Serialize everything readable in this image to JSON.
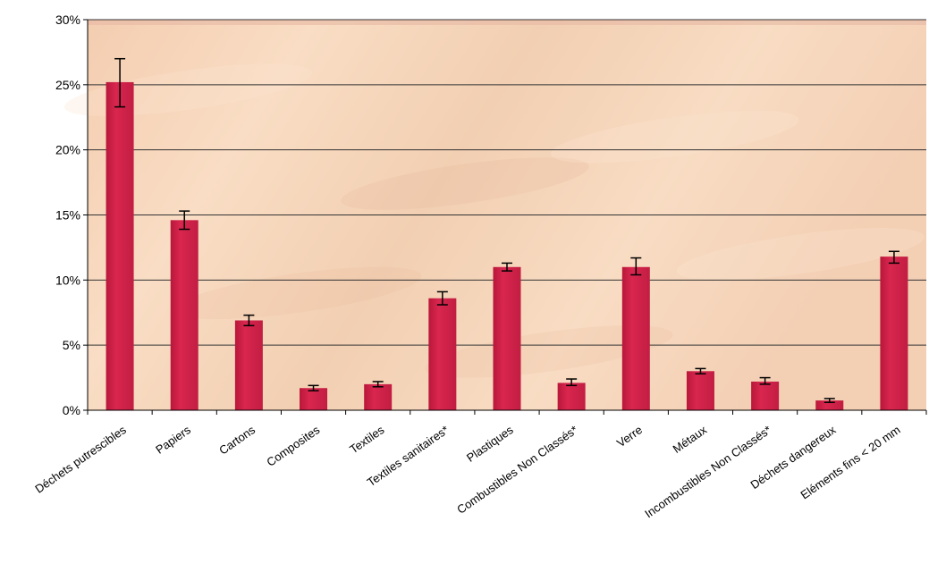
{
  "chart_data": {
    "type": "bar",
    "title": "",
    "xlabel": "",
    "ylabel": "",
    "categories": [
      "Déchets putrescibles",
      "Papiers",
      "Cartons",
      "Composites",
      "Textiles",
      "Textiles sanitaires*",
      "Plastiques",
      "Combustibles Non Classés*",
      "Verre",
      "Métaux",
      "Incombustibles Non Classés*",
      "Déchets dangereux",
      "Eléments fins < 20 mm"
    ],
    "values": [
      25.2,
      14.6,
      6.9,
      1.7,
      2.0,
      8.6,
      11.0,
      2.1,
      11.0,
      3.0,
      2.2,
      0.75,
      11.8
    ],
    "error_low": [
      23.3,
      13.9,
      6.5,
      1.5,
      1.8,
      8.1,
      10.7,
      1.9,
      10.4,
      2.8,
      2.0,
      0.6,
      11.3
    ],
    "error_high": [
      27.0,
      15.3,
      7.3,
      1.9,
      2.2,
      9.1,
      11.3,
      2.4,
      11.7,
      3.2,
      2.5,
      0.9,
      12.2
    ],
    "ylim": [
      0,
      30
    ],
    "yticks": [
      "0%",
      "5%",
      "10%",
      "15%",
      "20%",
      "25%",
      "30%"
    ],
    "grid": true,
    "legend": "none",
    "colors": {
      "bar": "#cc1f44",
      "grid": "#333333",
      "background": "#f3d2b3",
      "error": "#000000"
    }
  }
}
